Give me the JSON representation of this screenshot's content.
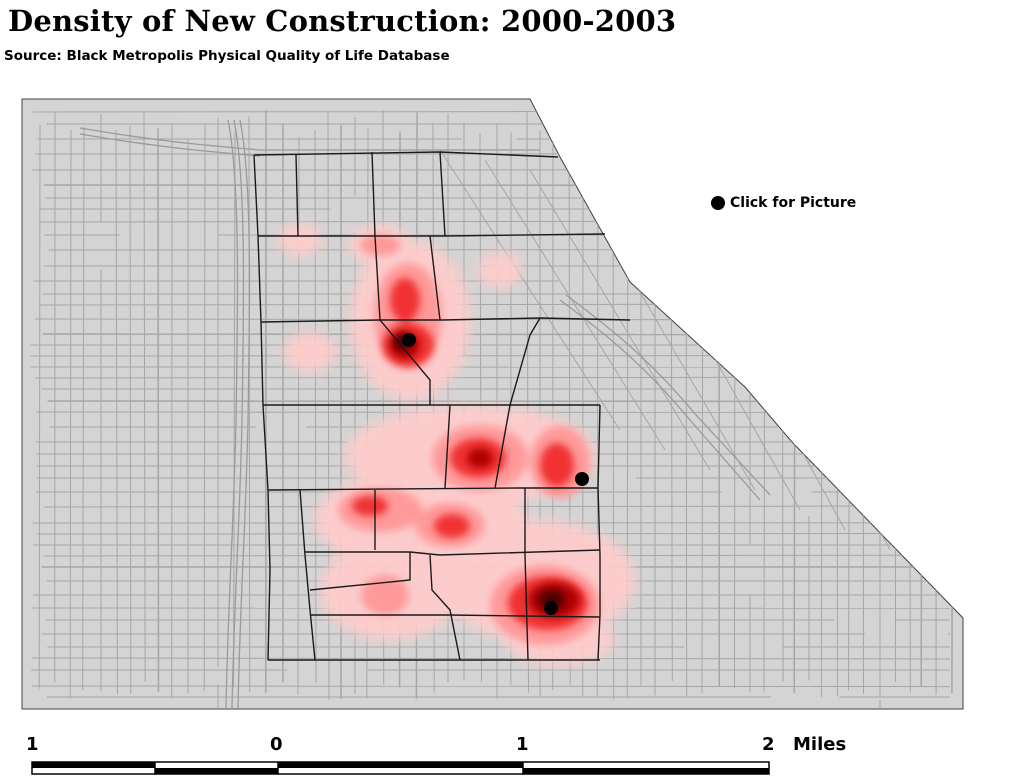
{
  "header": {
    "title": "Density of New Construction: 2000-2003",
    "subtitle": "Source: Black Metropolis Physical Quality of Life Database"
  },
  "legend": {
    "label": "Click for Picture",
    "marker_color": "#000000",
    "icon": "black-dot-icon"
  },
  "colors": {
    "land": "#d4d4d4",
    "streets": "#a6a6a6",
    "boundaries": "#1a1a1a",
    "density_low": "#ffcccc",
    "density_mid": "#ff5a5a",
    "density_high": "#e00000",
    "density_peak": "#4a0000"
  },
  "picture_markers": [
    {
      "id": "marker-1",
      "label": "Click for Picture"
    },
    {
      "id": "marker-2",
      "label": "Click for Picture"
    },
    {
      "id": "marker-3",
      "label": "Click for Picture"
    }
  ],
  "scale_bar": {
    "labels": [
      "1",
      "0",
      "1",
      "2"
    ],
    "unit": "Miles"
  }
}
